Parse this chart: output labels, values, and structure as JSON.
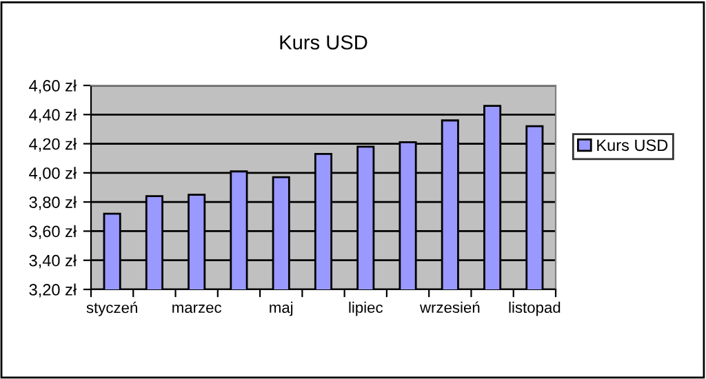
{
  "chart_data": {
    "type": "bar",
    "title": "Kurs USD",
    "categories": [
      "styczeń",
      null,
      "marzec",
      null,
      "maj",
      null,
      "lipiec",
      null,
      "wrzesień",
      null,
      "listopad"
    ],
    "series": [
      {
        "name": "Kurs USD",
        "color": "#9999ff",
        "values": [
          3.72,
          3.84,
          3.85,
          4.01,
          3.97,
          4.13,
          4.18,
          4.21,
          4.36,
          4.46,
          4.32
        ]
      }
    ],
    "ylim": [
      3.2,
      4.6
    ],
    "yticks": [
      {
        "value": 3.2,
        "label": "3,20 zł"
      },
      {
        "value": 3.4,
        "label": "3,40 zł"
      },
      {
        "value": 3.6,
        "label": "3,60 zł"
      },
      {
        "value": 3.8,
        "label": "3,80 zł"
      },
      {
        "value": 4.0,
        "label": "4,00 zł"
      },
      {
        "value": 4.2,
        "label": "4,20 zł"
      },
      {
        "value": 4.4,
        "label": "4,40 zł"
      },
      {
        "value": 4.6,
        "label": "4,60 zł"
      }
    ],
    "grid": "y",
    "legend": "right"
  }
}
